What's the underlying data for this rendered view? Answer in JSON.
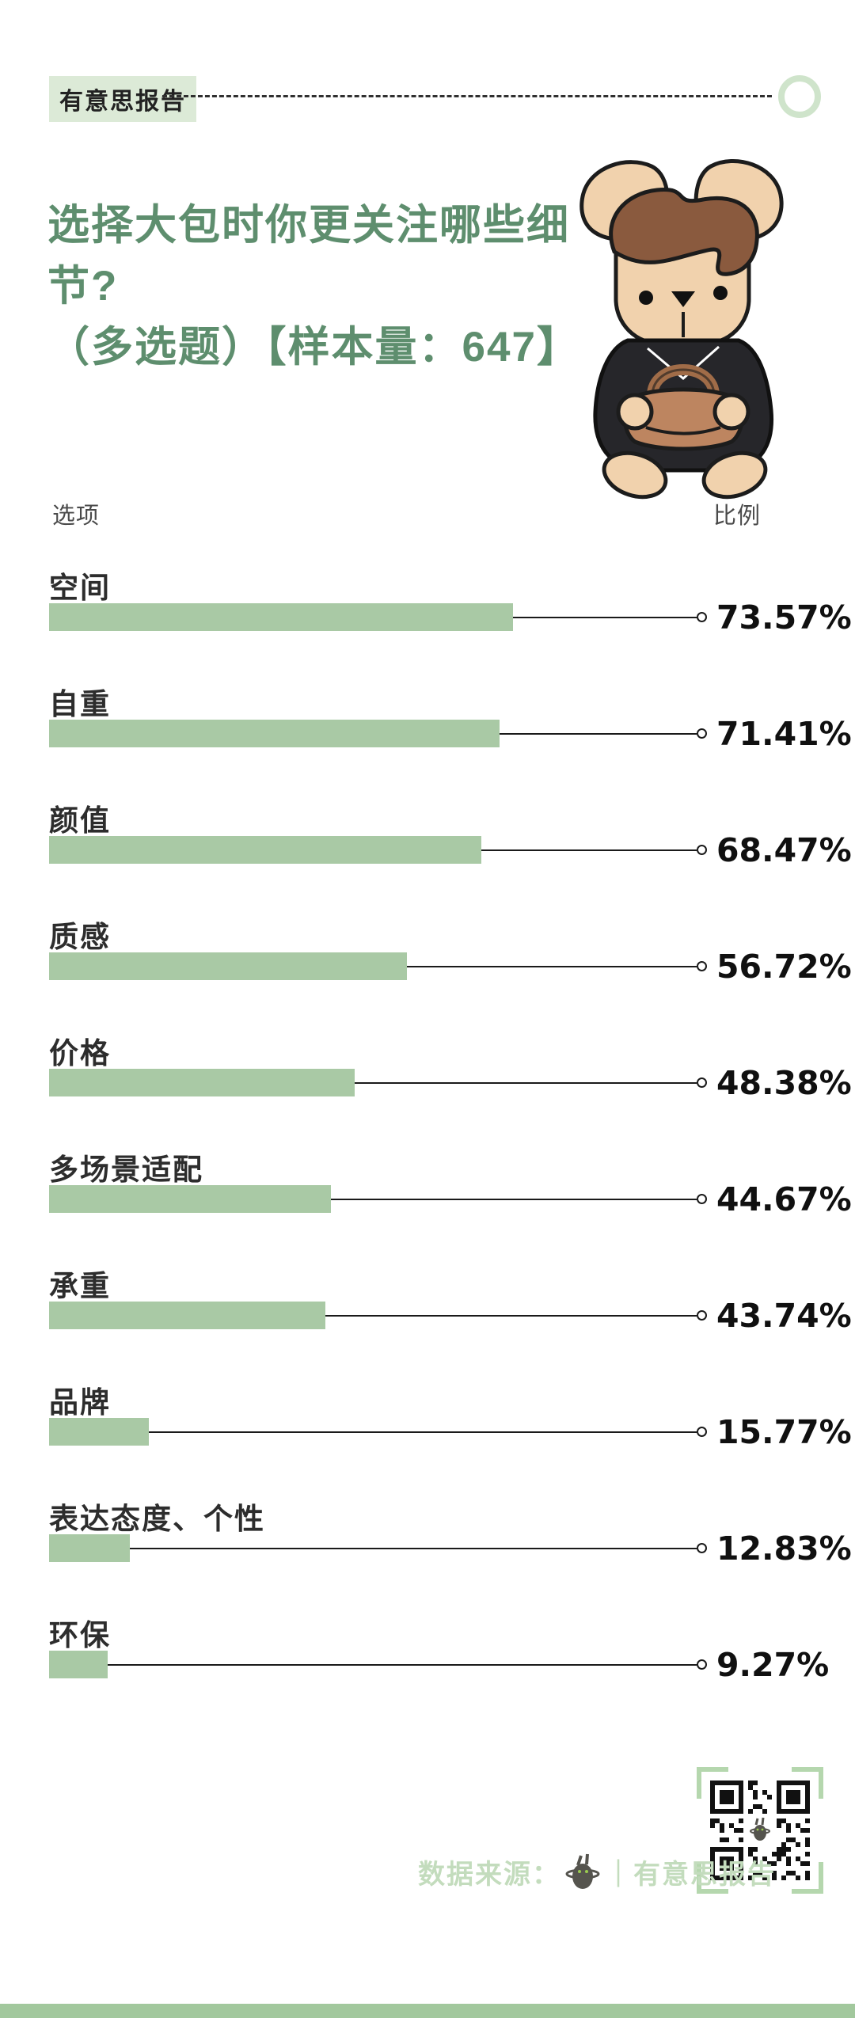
{
  "header": {
    "badge": "有意思报告",
    "title_line1": "选择大包时你更关注哪些细节?",
    "title_line2": "（多选题）【样本量：647】"
  },
  "table": {
    "option_header": "选项",
    "ratio_header": "比例"
  },
  "chart_data": {
    "type": "bar",
    "orientation": "horizontal",
    "title": "选择大包时你更关注哪些细节?（多选题）【样本量：647】",
    "sample_size": 647,
    "categories": [
      "空间",
      "自重",
      "颜值",
      "质感",
      "价格",
      "多场景适配",
      "承重",
      "品牌",
      "表达态度、个性",
      "环保"
    ],
    "values": [
      73.57,
      71.41,
      68.47,
      56.72,
      48.38,
      44.67,
      43.74,
      15.77,
      12.83,
      9.27
    ],
    "value_labels": [
      "73.57%",
      "71.41%",
      "68.47%",
      "56.72%",
      "48.38%",
      "44.67%",
      "43.74%",
      "15.77%",
      "12.83%",
      "9.27%"
    ],
    "xlabel": "比例",
    "ylabel": "选项",
    "xlim": [
      0,
      100
    ],
    "grid": false,
    "legend": false
  },
  "footer": {
    "source_label": "数据来源：",
    "source_name": "｜有意思报告"
  },
  "icons": {
    "rabbit_mascot": "rabbit-holding-bag-illustration",
    "mini_rabbit": "rabbit-logo-icon",
    "qr_code": "qr-code",
    "ring": "circle-ring-icon"
  },
  "colors": {
    "title_green": "#5e8e6e",
    "bar_green": "#a9c9a5",
    "badge_bg": "#dcead7",
    "footer_green": "#c3dcbd",
    "bracket_green": "#b5d7ae",
    "strip_green": "#a2c89d",
    "line_black": "#1a1a1a"
  }
}
